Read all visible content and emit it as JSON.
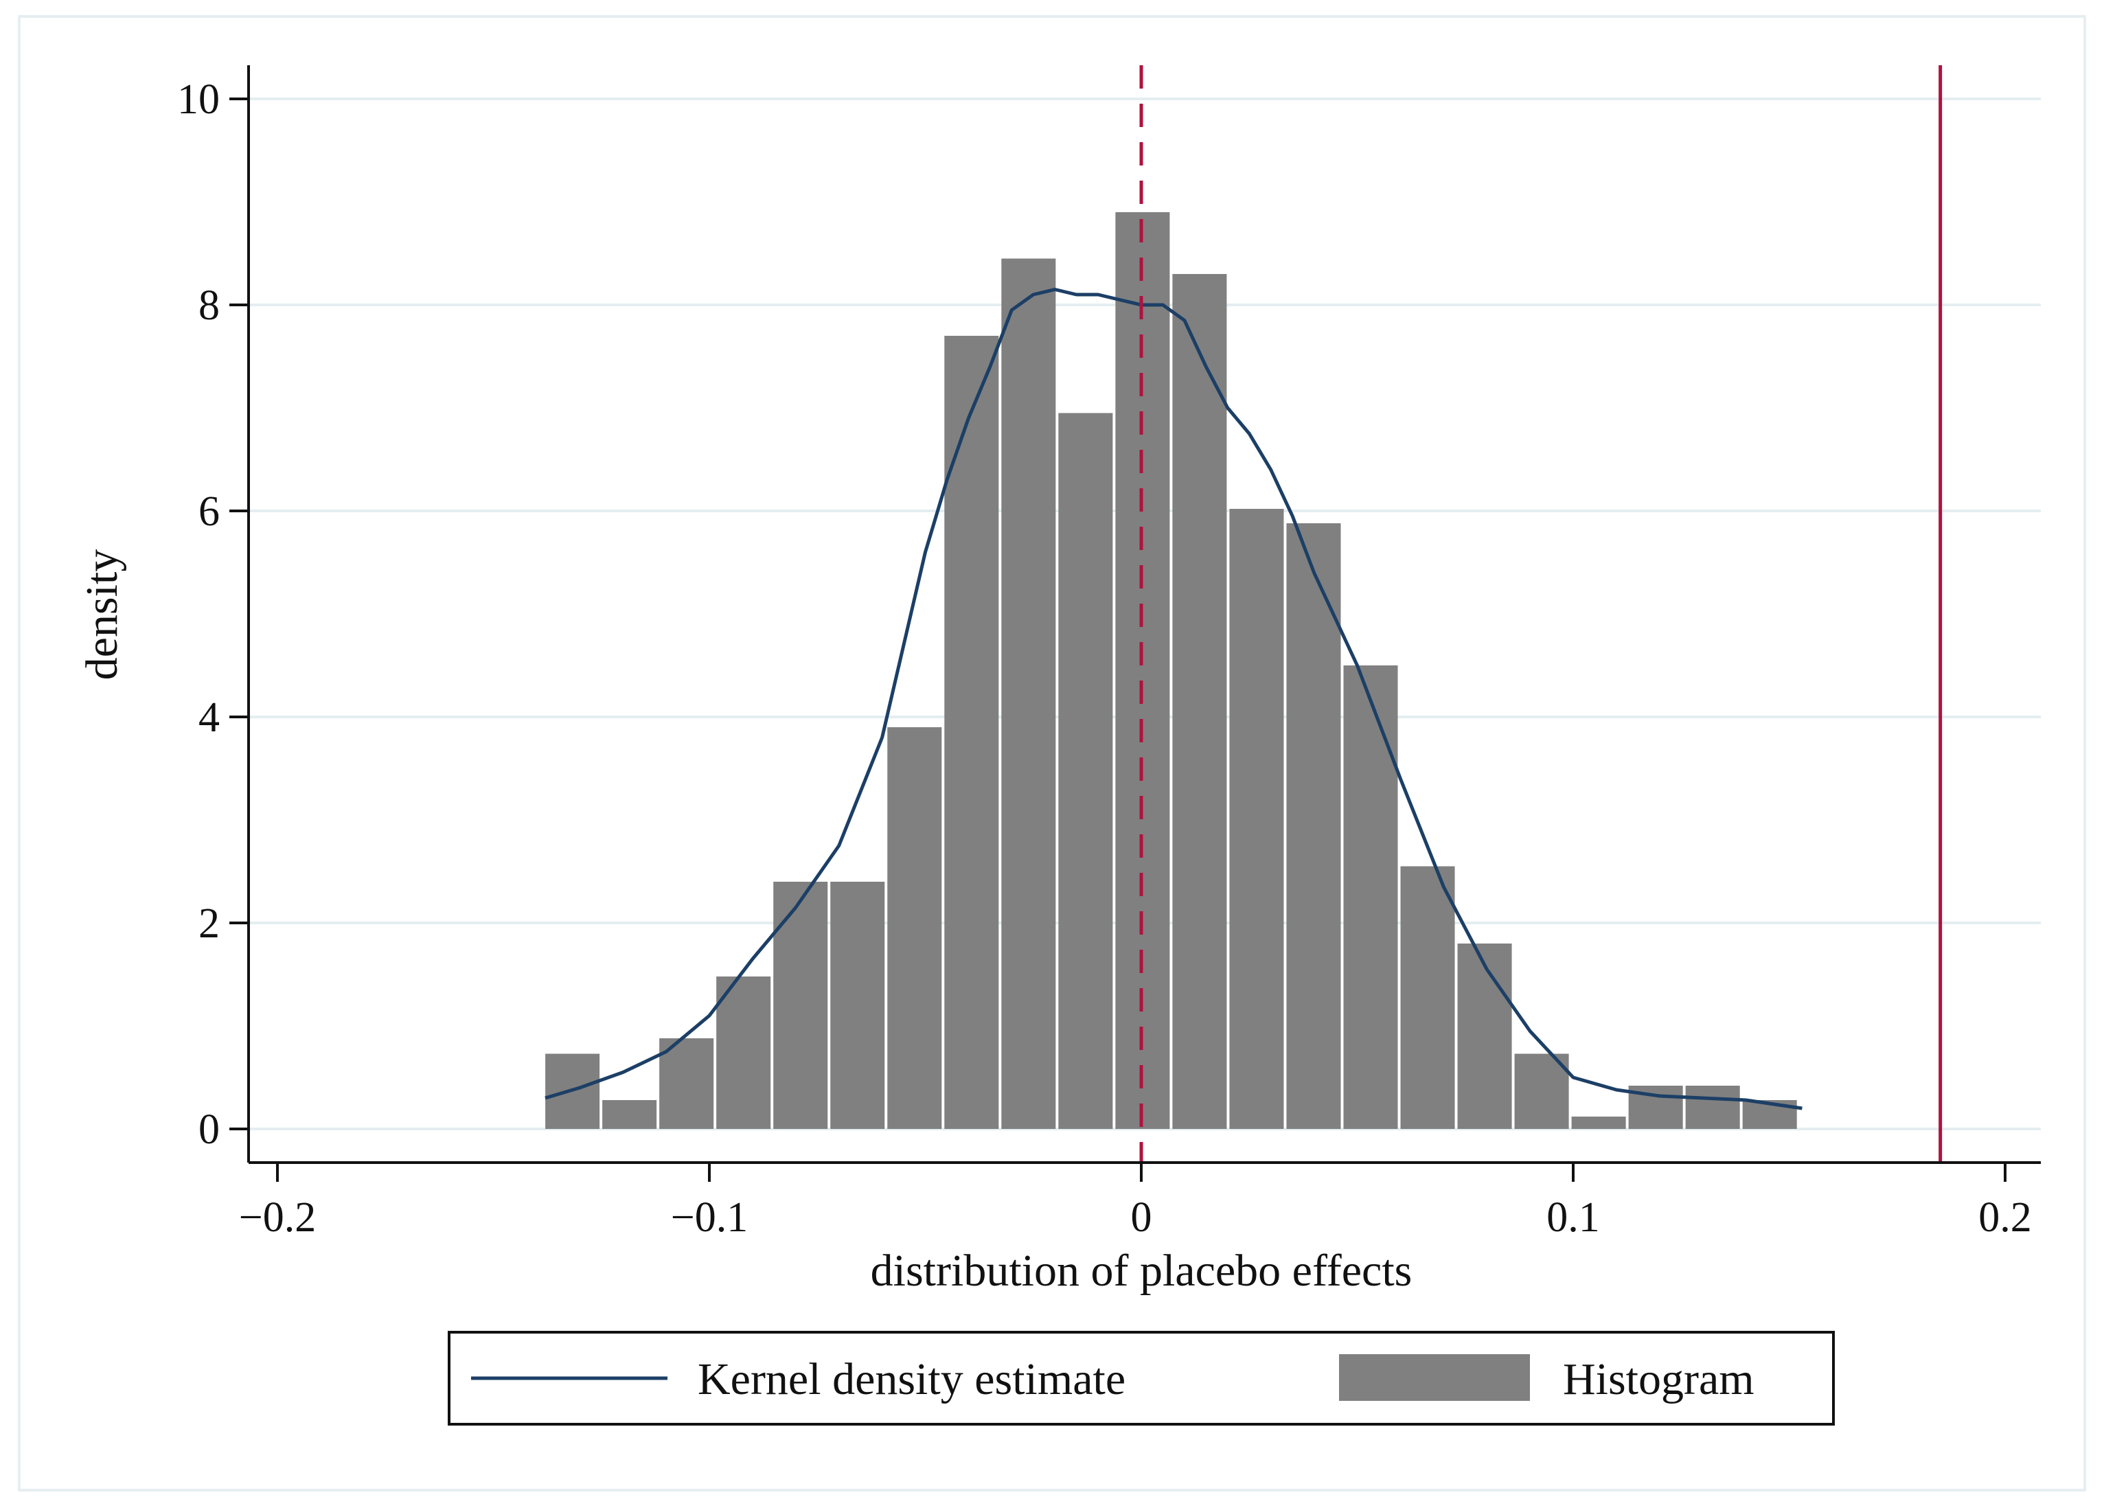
{
  "chart_data": {
    "type": "bar",
    "title": "",
    "xlabel": "distribution of placebo effects",
    "ylabel": "density",
    "xlim": [
      -0.2,
      0.2
    ],
    "ylim": [
      0,
      10
    ],
    "x_ticks": [
      -0.2,
      -0.1,
      0,
      0.1,
      0.2
    ],
    "x_tick_labels": [
      "−0.2",
      "−0.1",
      "0",
      "0.1",
      "0.2"
    ],
    "y_ticks": [
      0,
      2,
      4,
      6,
      8,
      10
    ],
    "y_tick_labels": [
      "0",
      "2",
      "4",
      "6",
      "8",
      "10"
    ],
    "grid": true,
    "histogram": {
      "name": "Histogram",
      "bin_width": 0.0132,
      "bin_centers": [
        -0.1317,
        -0.1185,
        -0.1053,
        -0.0921,
        -0.0789,
        -0.0657,
        -0.0525,
        -0.0393,
        -0.0261,
        -0.0129,
        0.0003,
        0.0135,
        0.0267,
        0.0399,
        0.0531,
        0.0663,
        0.0795,
        0.0927,
        0.1059,
        0.1191,
        0.1323,
        0.1455
      ],
      "values": [
        0.73,
        0.28,
        0.88,
        1.48,
        2.4,
        2.4,
        3.9,
        7.7,
        8.45,
        6.95,
        8.9,
        8.3,
        6.02,
        5.88,
        4.5,
        2.55,
        1.8,
        0.73,
        0.12,
        0.42,
        0.42,
        0.28
      ]
    },
    "kernel_density": {
      "name": "Kernel density estimate",
      "x": [
        -0.138,
        -0.13,
        -0.12,
        -0.11,
        -0.1,
        -0.09,
        -0.08,
        -0.07,
        -0.06,
        -0.05,
        -0.045,
        -0.04,
        -0.035,
        -0.03,
        -0.025,
        -0.02,
        -0.015,
        -0.01,
        -0.005,
        0.0,
        0.005,
        0.01,
        0.015,
        0.02,
        0.025,
        0.03,
        0.035,
        0.04,
        0.045,
        0.05,
        0.06,
        0.07,
        0.08,
        0.09,
        0.1,
        0.11,
        0.12,
        0.13,
        0.14,
        0.153
      ],
      "y": [
        0.3,
        0.4,
        0.55,
        0.75,
        1.1,
        1.65,
        2.15,
        2.75,
        3.8,
        5.6,
        6.3,
        6.9,
        7.4,
        7.95,
        8.1,
        8.15,
        8.1,
        8.1,
        8.05,
        8.0,
        8.0,
        7.85,
        7.4,
        7.0,
        6.75,
        6.4,
        5.95,
        5.4,
        4.95,
        4.5,
        3.4,
        2.35,
        1.55,
        0.95,
        0.5,
        0.38,
        0.32,
        0.3,
        0.28,
        0.2
      ]
    },
    "reference_lines": [
      {
        "name": "zero-dashed-line",
        "x": 0,
        "style": "dashed",
        "color": "#b0123f"
      },
      {
        "name": "actual-effect-line",
        "x": 0.185,
        "style": "solid",
        "color": "#b0123f"
      }
    ],
    "legend": {
      "placement": "bottom-center",
      "entries": [
        "Kernel density estimate",
        "Histogram"
      ]
    },
    "colors": {
      "bar": "#808080",
      "kde": "#1c3f66",
      "reference": "#b0123f",
      "grid": "#e4eef1"
    }
  }
}
